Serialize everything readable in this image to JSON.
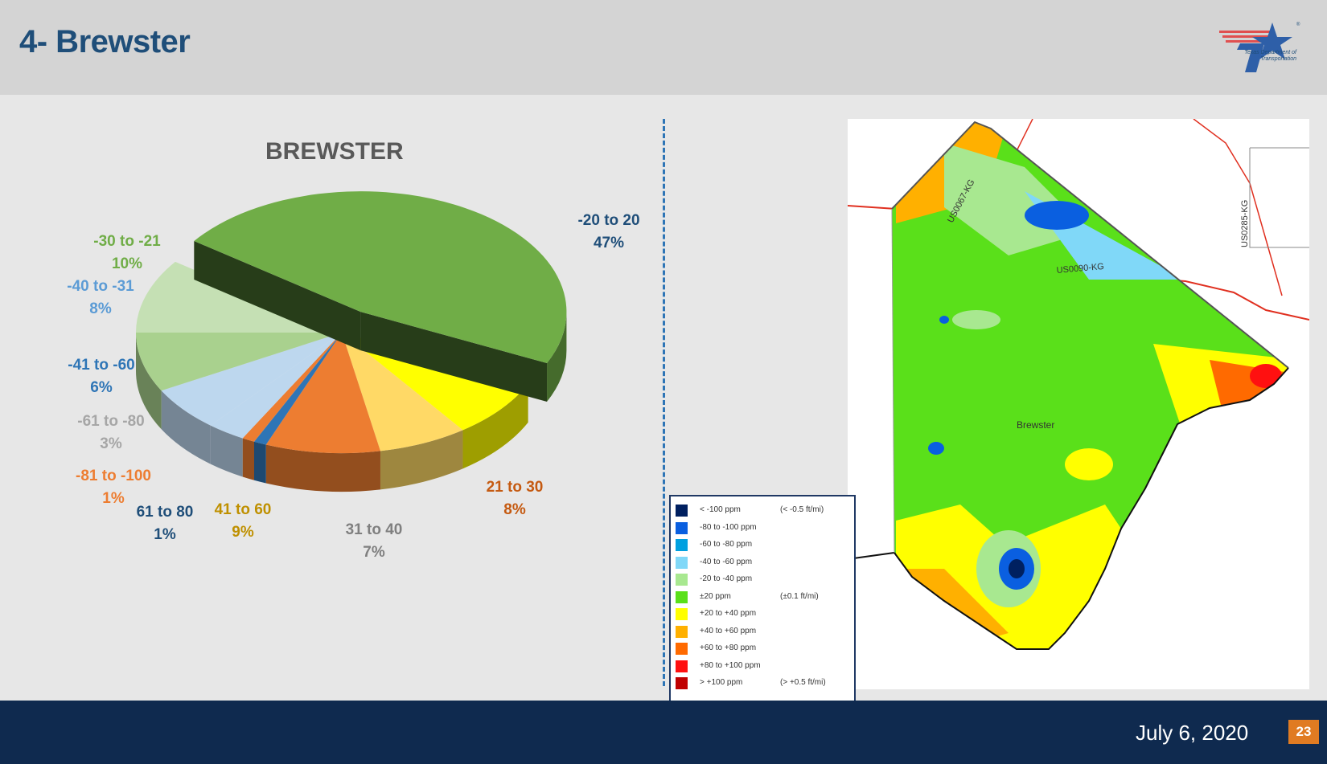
{
  "header": {
    "title": "4- Brewster",
    "logo_text": "Texas Department of Transportation"
  },
  "chart_data": {
    "type": "pie",
    "title": "BREWSTER",
    "categories": [
      "-20 to 20",
      "21 to 30",
      "31 to 40",
      "41 to 60",
      "61 to 80",
      "-81 to -100",
      "-61 to -80",
      "-41 to -60",
      "-40 to -31",
      "-30 to -21"
    ],
    "values": [
      47,
      8,
      7,
      9,
      1,
      1,
      3,
      6,
      8,
      10
    ],
    "value_labels": [
      "47%",
      "8%",
      "7%",
      "9%",
      "1%",
      "1%",
      "3%",
      "6%",
      "8%",
      "10%"
    ],
    "colors": [
      "#70ad47",
      "#ffff00",
      "#ffd966",
      "#ed7d31",
      "#2e75b6",
      "#ed7d31",
      "#bdd7ee",
      "#bdd7ee",
      "#a9d18e",
      "#c5e0b4"
    ],
    "label_colors": [
      "#1f4e79",
      "#c55a11",
      "#7f7f7f",
      "#bf9000",
      "#1f4e79",
      "#ed7d31",
      "#a6a6a6",
      "#2e75b6",
      "#5b9bd5",
      "#70ad47"
    ],
    "exploded": "-20 to 20"
  },
  "legend": {
    "items": [
      {
        "range": "< -100 ppm",
        "note": "(< -0.5 ft/mi)",
        "color": "#002060"
      },
      {
        "range": "-80 to -100 ppm",
        "note": "",
        "color": "#0a5fe0"
      },
      {
        "range": "-60 to -80 ppm",
        "note": "",
        "color": "#00a0e0"
      },
      {
        "range": "-40 to -60 ppm",
        "note": "",
        "color": "#80d8f8"
      },
      {
        "range": "-20 to -40 ppm",
        "note": "",
        "color": "#a8e890"
      },
      {
        "range": "±20 ppm",
        "note": "(±0.1 ft/mi)",
        "color": "#5ae01a"
      },
      {
        "range": "+20 to +40 ppm",
        "note": "",
        "color": "#ffff00"
      },
      {
        "range": "+40 to +60 ppm",
        "note": "",
        "color": "#ffb000"
      },
      {
        "range": "+60 to +80 ppm",
        "note": "",
        "color": "#ff6a00"
      },
      {
        "range": "+80 to +100 ppm",
        "note": "",
        "color": "#ff1010"
      },
      {
        "range": "> +100 ppm",
        "note": "(> +0.5 ft/mi)",
        "color": "#c00000"
      }
    ]
  },
  "map": {
    "county_label": "Brewster",
    "road_labels": [
      "US0067-KG",
      "US0090-KG",
      "US0285-KG"
    ]
  },
  "footer": {
    "date": "July 6, 2020",
    "page": "23"
  }
}
